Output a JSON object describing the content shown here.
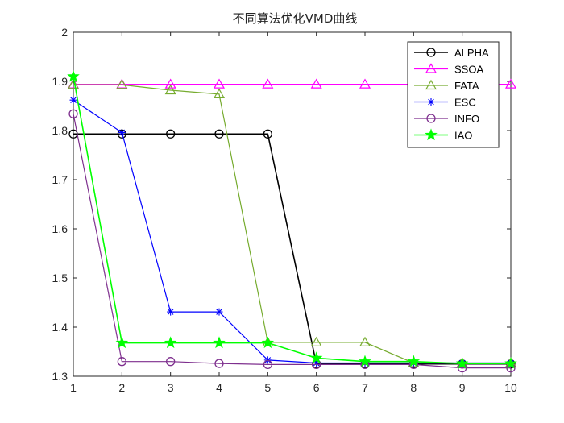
{
  "chart_data": {
    "type": "line",
    "title": "不同算法优化VMD曲线",
    "xlabel": "",
    "ylabel": "",
    "x": [
      1,
      2,
      3,
      4,
      5,
      6,
      7,
      8,
      9,
      10
    ],
    "xlim": [
      1,
      10
    ],
    "ylim": [
      1.3,
      2.0
    ],
    "xticks": [
      "1",
      "2",
      "3",
      "4",
      "5",
      "6",
      "7",
      "8",
      "9",
      "10"
    ],
    "yticks": [
      "1.3",
      "1.4",
      "1.5",
      "1.6",
      "1.7",
      "1.8",
      "1.9",
      "2"
    ],
    "grid": false,
    "legend_position": "top-right",
    "series": [
      {
        "name": "ALPHA",
        "color": "#000000",
        "marker": "circle",
        "values": [
          1.793,
          1.793,
          1.793,
          1.793,
          1.793,
          1.325,
          1.325,
          1.325,
          1.325,
          1.325
        ]
      },
      {
        "name": "SSOA",
        "color": "#ff00ff",
        "marker": "triangle",
        "values": [
          1.894,
          1.894,
          1.894,
          1.894,
          1.894,
          1.894,
          1.894,
          1.894,
          1.894,
          1.894
        ]
      },
      {
        "name": "FATA",
        "color": "#77ac30",
        "marker": "triangle",
        "values": [
          1.893,
          1.893,
          1.882,
          1.874,
          1.369,
          1.369,
          1.369,
          1.327,
          1.327,
          1.327
        ]
      },
      {
        "name": "ESC",
        "color": "#0000ff",
        "marker": "star",
        "values": [
          1.862,
          1.796,
          1.431,
          1.431,
          1.333,
          1.327,
          1.327,
          1.327,
          1.327,
          1.327
        ]
      },
      {
        "name": "INFO",
        "color": "#7e2f8e",
        "marker": "circle",
        "values": [
          1.834,
          1.33,
          1.33,
          1.326,
          1.324,
          1.324,
          1.324,
          1.324,
          1.317,
          1.317
        ]
      },
      {
        "name": "IAO",
        "color": "#00ff00",
        "marker": "pentagram",
        "values": [
          1.91,
          1.368,
          1.368,
          1.368,
          1.368,
          1.337,
          1.33,
          1.33,
          1.326,
          1.326
        ]
      }
    ]
  }
}
